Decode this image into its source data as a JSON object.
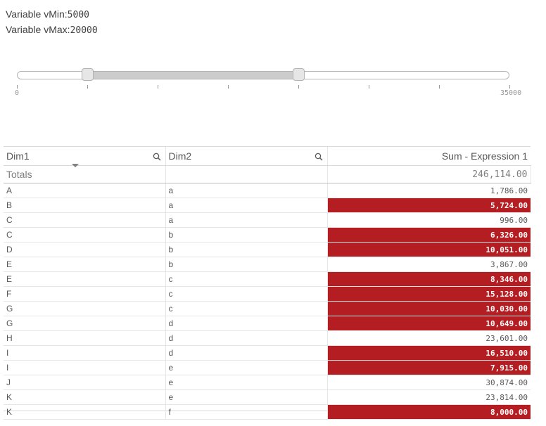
{
  "variables": {
    "min_label": "Variable vMin:",
    "min_value": "5000",
    "max_label": "Variable vMax:",
    "max_value": "20000"
  },
  "slider": {
    "min": 0,
    "max": 35000,
    "low": 5000,
    "high": 20000,
    "min_label": "0",
    "max_label": "35000",
    "track_color": "#cccccc"
  },
  "table": {
    "headers": [
      "Dim1",
      "Dim2",
      "Sum - Expression 1"
    ],
    "totals_label": "Totals",
    "totals_value": "246,114.00",
    "highlight_color": "#b41e22",
    "rows": [
      {
        "dim1": "A",
        "dim2": "a",
        "value": "1,786.00",
        "highlight": false
      },
      {
        "dim1": "B",
        "dim2": "a",
        "value": "5,724.00",
        "highlight": true
      },
      {
        "dim1": "C",
        "dim2": "a",
        "value": "996.00",
        "highlight": false
      },
      {
        "dim1": "C",
        "dim2": "b",
        "value": "6,326.00",
        "highlight": true
      },
      {
        "dim1": "D",
        "dim2": "b",
        "value": "10,051.00",
        "highlight": true
      },
      {
        "dim1": "E",
        "dim2": "b",
        "value": "3,867.00",
        "highlight": false
      },
      {
        "dim1": "E",
        "dim2": "c",
        "value": "8,346.00",
        "highlight": true
      },
      {
        "dim1": "F",
        "dim2": "c",
        "value": "15,128.00",
        "highlight": true
      },
      {
        "dim1": "G",
        "dim2": "c",
        "value": "10,030.00",
        "highlight": true
      },
      {
        "dim1": "G",
        "dim2": "d",
        "value": "10,649.00",
        "highlight": true
      },
      {
        "dim1": "H",
        "dim2": "d",
        "value": "23,601.00",
        "highlight": false
      },
      {
        "dim1": "I",
        "dim2": "d",
        "value": "16,510.00",
        "highlight": true
      },
      {
        "dim1": "I",
        "dim2": "e",
        "value": "7,915.00",
        "highlight": true
      },
      {
        "dim1": "J",
        "dim2": "e",
        "value": "30,874.00",
        "highlight": false
      },
      {
        "dim1": "K",
        "dim2": "e",
        "value": "23,814.00",
        "highlight": false
      },
      {
        "dim1": "K",
        "dim2": "f",
        "value": "8,000.00",
        "highlight": true
      }
    ]
  },
  "icons": {
    "search": "search-icon",
    "sort": "sort-descending-icon"
  }
}
